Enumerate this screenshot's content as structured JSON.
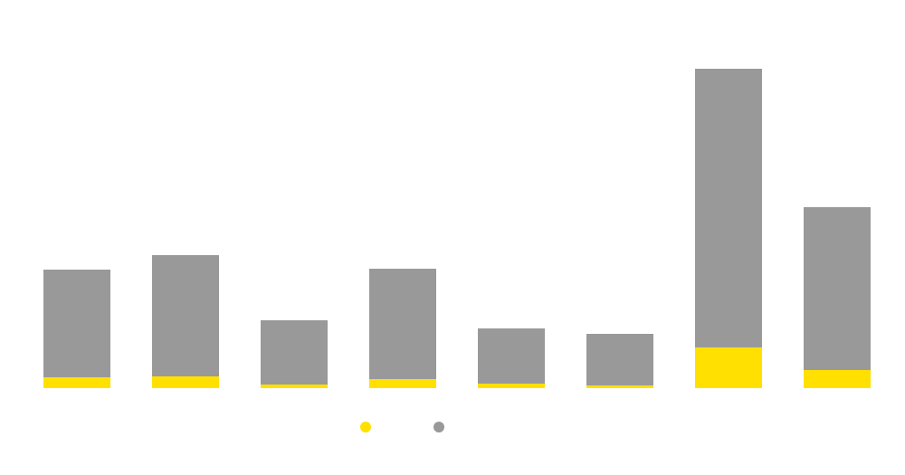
{
  "chart_data": {
    "type": "bar",
    "stacked": true,
    "title": "",
    "xlabel": "",
    "ylabel": "",
    "categories": [
      "",
      "",
      "",
      "",
      "",
      "",
      "",
      ""
    ],
    "ylim": [
      0,
      360
    ],
    "grid": false,
    "legend_placement": "bottom-center",
    "series": [
      {
        "color": "#FFE000",
        "values": [
          12,
          13,
          4,
          10,
          5,
          3,
          45,
          20
        ]
      },
      {
        "color": "#999999",
        "values": [
          119,
          134,
          71,
          122,
          61,
          57,
          308,
          180
        ]
      }
    ]
  }
}
